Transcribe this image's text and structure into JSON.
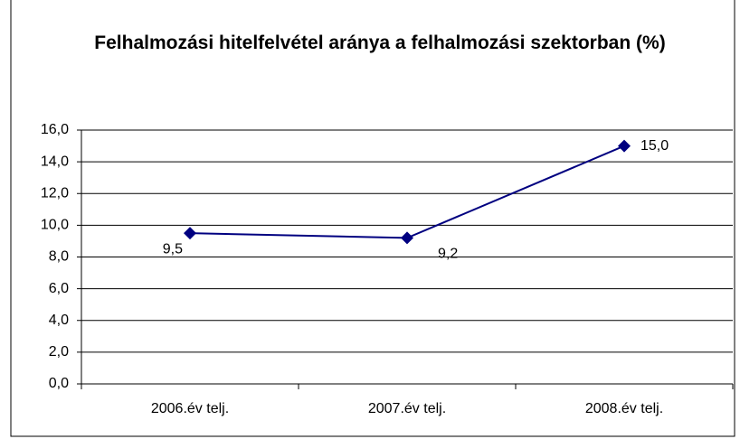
{
  "chart_data": {
    "type": "line",
    "title": "Felhalmozási hitelfelvétel aránya a felhalmozási szektorban (%)",
    "categories": [
      "2006.év telj.",
      "2007.év telj.",
      "2008.év telj."
    ],
    "series": [
      {
        "name": "Felhalmozási hitelfelvétel aránya",
        "color": "#000080",
        "values": [
          9.5,
          9.2,
          15.0
        ],
        "value_labels": [
          "9,5",
          "9,2",
          "15,0"
        ]
      }
    ],
    "ylim": [
      0,
      16
    ],
    "yticks": [
      {
        "value": 0,
        "label": "0,0"
      },
      {
        "value": 2,
        "label": "2,0"
      },
      {
        "value": 4,
        "label": "4,0"
      },
      {
        "value": 6,
        "label": "6,0"
      },
      {
        "value": 8,
        "label": "8,0"
      },
      {
        "value": 10,
        "label": "10,0"
      },
      {
        "value": 12,
        "label": "12,0"
      },
      {
        "value": 14,
        "label": "14,0"
      },
      {
        "value": 16,
        "label": "16,0"
      }
    ],
    "grid": true
  }
}
